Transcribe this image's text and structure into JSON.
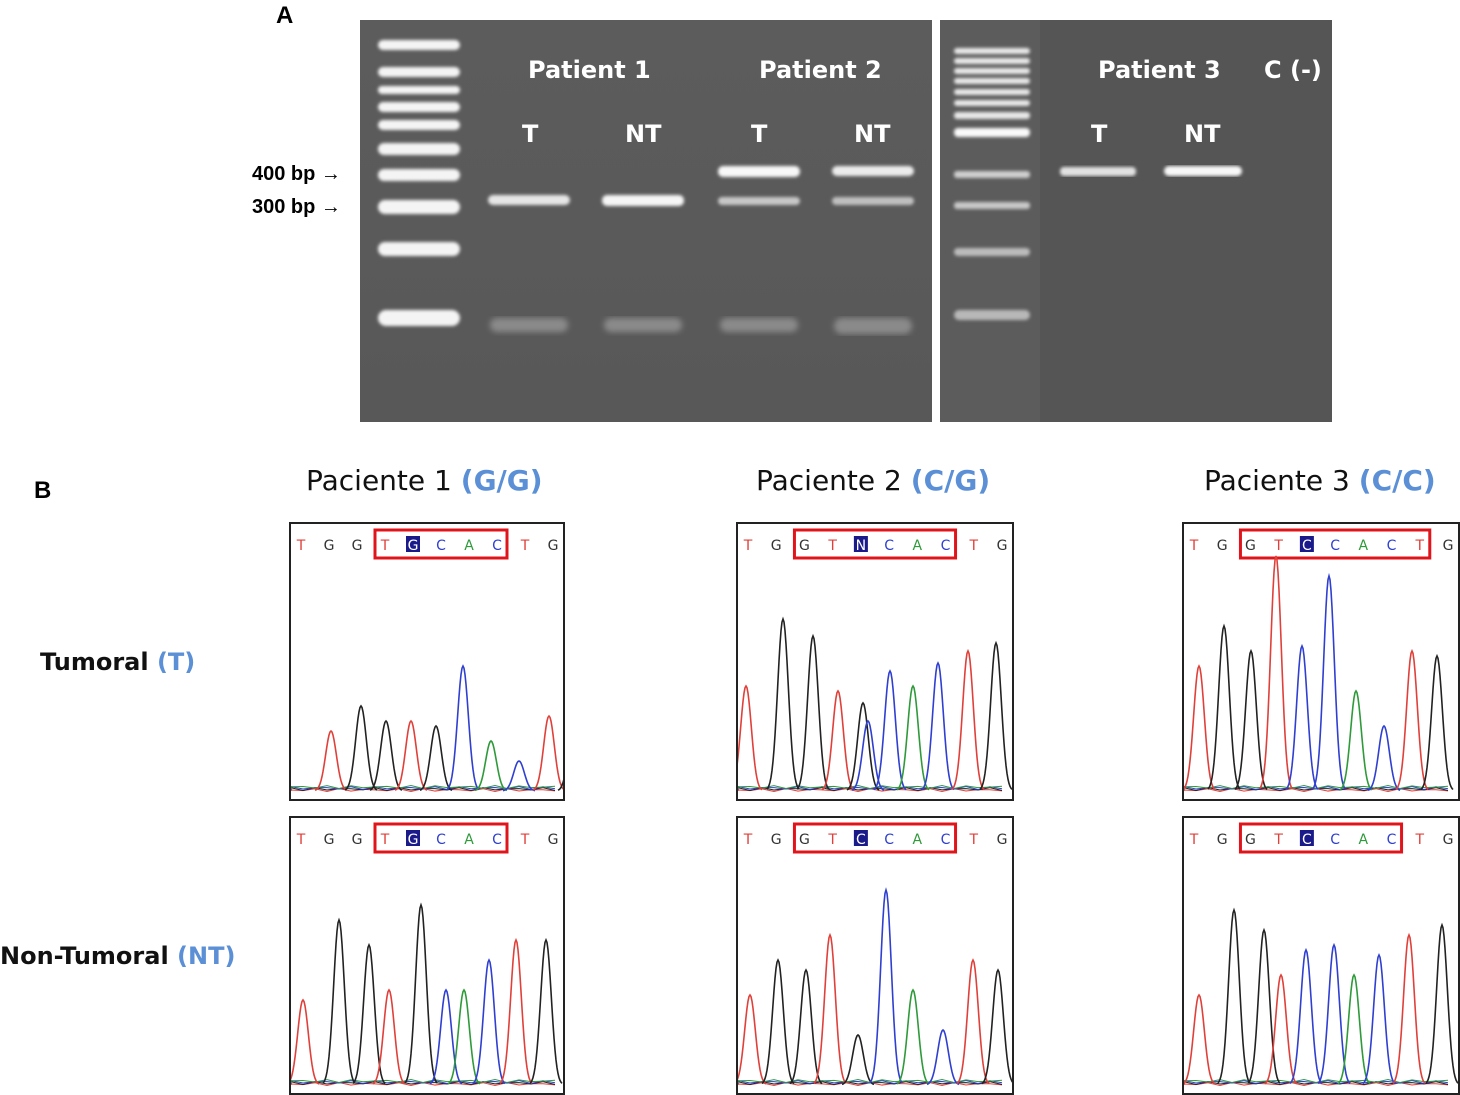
{
  "panel_a": {
    "letter": "A",
    "gel_left": {
      "patients": [
        {
          "label": "Patient 1",
          "lanes": [
            "T",
            "NT"
          ]
        },
        {
          "label": "Patient 2",
          "lanes": [
            "T",
            "NT"
          ]
        }
      ]
    },
    "gel_right": {
      "patients": [
        {
          "label": "Patient 3",
          "lanes": [
            "T",
            "NT"
          ]
        }
      ],
      "control_label": "C (-)"
    },
    "markers": [
      "400 bp →",
      "300 bp →"
    ]
  },
  "panel_b": {
    "letter": "B",
    "patients": [
      {
        "name": "Paciente 1",
        "genotype": "(G/G)"
      },
      {
        "name": "Paciente 2",
        "genotype": "(C/G)"
      },
      {
        "name": "Paciente 3",
        "genotype": "(C/C)"
      }
    ],
    "rows": [
      {
        "label": "Tumoral",
        "abbr": "(T)"
      },
      {
        "label": "Non-Tumoral",
        "abbr": "(NT)"
      }
    ],
    "sequences": {
      "p1_t": [
        "T",
        "G",
        "G",
        "T",
        "G",
        "C",
        "A",
        "C",
        "T",
        "G"
      ],
      "p2_t": [
        "T",
        "G",
        "G",
        "T",
        "N",
        "C",
        "A",
        "C",
        "T",
        "G"
      ],
      "p3_t": [
        "T",
        "G",
        "G",
        "T",
        "C",
        "C",
        "A",
        "C",
        "T",
        "G"
      ],
      "p1_nt": [
        "T",
        "G",
        "G",
        "T",
        "G",
        "C",
        "A",
        "C",
        "T",
        "G"
      ],
      "p2_nt": [
        "T",
        "G",
        "G",
        "T",
        "C",
        "C",
        "A",
        "C",
        "T",
        "G"
      ],
      "p3_nt": [
        "T",
        "G",
        "G",
        "T",
        "C",
        "C",
        "A",
        "C",
        "T",
        "G"
      ]
    },
    "base_colors": {
      "T": "#e0403a",
      "G": "#333333",
      "C": "#2f3fd0",
      "A": "#2e9a3a",
      "N": "#2f3fd0"
    },
    "highlight_color": "#e0141b"
  }
}
